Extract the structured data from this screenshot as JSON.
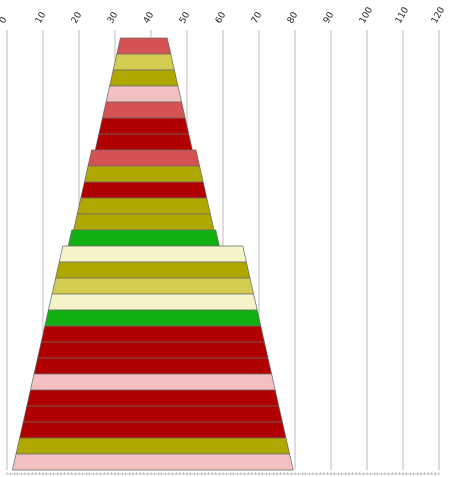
{
  "chart_data": {
    "type": "bar",
    "orientation": "stacked-funnel",
    "x_axis": {
      "position": "top",
      "ticks": [
        0,
        10,
        20,
        30,
        40,
        50,
        60,
        70,
        80,
        90,
        100,
        110,
        120
      ],
      "range": [
        0,
        120
      ],
      "grid": true
    },
    "colors": {
      "red": "#b00000",
      "salmon": "#d45252",
      "olive": "#b0a800",
      "khaki": "#d2cc50",
      "pink": "#f2c0c0",
      "cream": "#f4f4c8",
      "green": "#10b010"
    },
    "segments": [
      {
        "left": 31.5,
        "right": 44.5,
        "color": "salmon"
      },
      {
        "left": 30.5,
        "right": 45.5,
        "color": "khaki"
      },
      {
        "left": 29.5,
        "right": 46.5,
        "color": "olive"
      },
      {
        "left": 28.5,
        "right": 47.5,
        "color": "pink"
      },
      {
        "left": 27.5,
        "right": 48.5,
        "color": "salmon"
      },
      {
        "left": 26.5,
        "right": 49.5,
        "color": "red"
      },
      {
        "left": 25.5,
        "right": 50.5,
        "color": "red"
      },
      {
        "left": 23.5,
        "right": 52.5,
        "color": "salmon"
      },
      {
        "left": 22.5,
        "right": 53.5,
        "color": "olive"
      },
      {
        "left": 21.5,
        "right": 54.5,
        "color": "red"
      },
      {
        "left": 20.5,
        "right": 55.5,
        "color": "olive"
      },
      {
        "left": 19.5,
        "right": 56.5,
        "color": "olive"
      },
      {
        "left": 18.0,
        "right": 58.0,
        "color": "green"
      },
      {
        "left": 15.5,
        "right": 65.5,
        "color": "cream"
      },
      {
        "left": 14.5,
        "right": 66.5,
        "color": "olive"
      },
      {
        "left": 13.5,
        "right": 67.5,
        "color": "khaki"
      },
      {
        "left": 12.5,
        "right": 68.5,
        "color": "cream"
      },
      {
        "left": 11.5,
        "right": 69.5,
        "color": "green"
      },
      {
        "left": 10.5,
        "right": 70.5,
        "color": "red"
      },
      {
        "left": 9.5,
        "right": 71.5,
        "color": "red"
      },
      {
        "left": 8.5,
        "right": 72.5,
        "color": "red"
      },
      {
        "left": 7.5,
        "right": 73.5,
        "color": "pink"
      },
      {
        "left": 6.5,
        "right": 74.5,
        "color": "red"
      },
      {
        "left": 5.5,
        "right": 75.5,
        "color": "red"
      },
      {
        "left": 4.5,
        "right": 76.5,
        "color": "red"
      },
      {
        "left": 3.5,
        "right": 77.5,
        "color": "olive"
      },
      {
        "left": 2.5,
        "right": 78.5,
        "color": "pink"
      }
    ]
  }
}
